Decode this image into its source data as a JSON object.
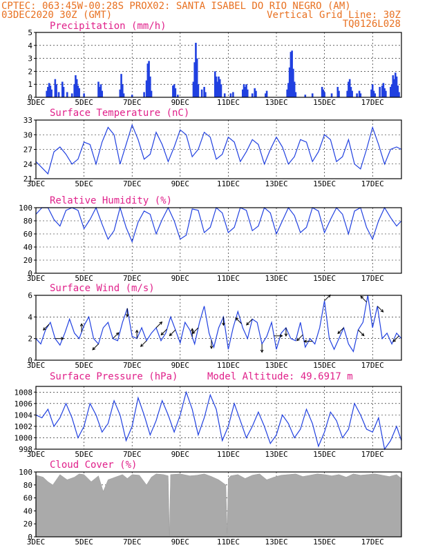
{
  "header": {
    "line1_left": "CPTEC:  063:45W-00:28S  PROX02: SANTA ISABEL DO RIO NEGRO (AM)",
    "line2_left": "03DEC2020 30Z (GMT)",
    "line2_right": "Vertical Grid Line: 30Z",
    "line3_right": "TQ0126L028"
  },
  "colors": {
    "header": "#e87020",
    "title": "#e0208a",
    "series": "#2040e0",
    "cloud": "#aaaaaa"
  },
  "x_axis": {
    "ticks": [
      {
        "day": 3,
        "label": "3DEC"
      },
      {
        "day": 5,
        "label": "5DEC"
      },
      {
        "day": 7,
        "label": "7DEC"
      },
      {
        "day": 9,
        "label": "9DEC"
      },
      {
        "day": 11,
        "label": "11DEC"
      },
      {
        "day": 13,
        "label": "13DEC"
      },
      {
        "day": 15,
        "label": "15DEC"
      },
      {
        "day": 17,
        "label": "17DEC"
      }
    ],
    "range": [
      3,
      18.2
    ]
  },
  "chart_data": [
    {
      "type": "bar",
      "title": "Precipitation (mm/h)",
      "ylim": [
        0,
        5
      ],
      "yticks": [
        0,
        1,
        2,
        3,
        4,
        5
      ],
      "points": [
        [
          3.45,
          0.5
        ],
        [
          3.5,
          0.8
        ],
        [
          3.55,
          1.1
        ],
        [
          3.6,
          0.9
        ],
        [
          3.65,
          0.6
        ],
        [
          3.8,
          1.4
        ],
        [
          3.85,
          1.0
        ],
        [
          3.95,
          0.4
        ],
        [
          4.1,
          1.2
        ],
        [
          4.15,
          0.8
        ],
        [
          4.3,
          0.4
        ],
        [
          4.5,
          0.3
        ],
        [
          4.6,
          1.0
        ],
        [
          4.65,
          1.7
        ],
        [
          4.7,
          1.4
        ],
        [
          4.75,
          0.9
        ],
        [
          4.8,
          0.7
        ],
        [
          5.0,
          0.3
        ],
        [
          5.6,
          1.2
        ],
        [
          5.65,
          0.8
        ],
        [
          5.7,
          1.0
        ],
        [
          5.75,
          0.5
        ],
        [
          6.5,
          0.6
        ],
        [
          6.55,
          1.8
        ],
        [
          6.6,
          1.0
        ],
        [
          6.65,
          0.3
        ],
        [
          7.0,
          0.2
        ],
        [
          7.5,
          0.4
        ],
        [
          7.6,
          1.3
        ],
        [
          7.65,
          2.6
        ],
        [
          7.7,
          2.8
        ],
        [
          7.75,
          1.6
        ],
        [
          7.8,
          0.5
        ],
        [
          8.7,
          0.9
        ],
        [
          8.75,
          1.0
        ],
        [
          8.8,
          0.7
        ],
        [
          8.9,
          0.2
        ],
        [
          9.55,
          1.2
        ],
        [
          9.6,
          2.7
        ],
        [
          9.65,
          4.2
        ],
        [
          9.7,
          3.0
        ],
        [
          9.75,
          1.0
        ],
        [
          9.9,
          0.6
        ],
        [
          10.0,
          0.8
        ],
        [
          10.05,
          0.4
        ],
        [
          10.45,
          2.0
        ],
        [
          10.5,
          1.6
        ],
        [
          10.55,
          1.2
        ],
        [
          10.6,
          1.6
        ],
        [
          10.65,
          1.4
        ],
        [
          10.7,
          1.0
        ],
        [
          10.85,
          0.3
        ],
        [
          11.1,
          0.3
        ],
        [
          11.2,
          0.4
        ],
        [
          11.6,
          0.6
        ],
        [
          11.65,
          1.0
        ],
        [
          11.7,
          0.8
        ],
        [
          11.75,
          1.0
        ],
        [
          11.8,
          0.6
        ],
        [
          12.0,
          0.3
        ],
        [
          12.1,
          0.7
        ],
        [
          12.15,
          0.5
        ],
        [
          12.55,
          0.3
        ],
        [
          12.6,
          0.5
        ],
        [
          13.45,
          0.6
        ],
        [
          13.5,
          1.1
        ],
        [
          13.55,
          2.3
        ],
        [
          13.6,
          3.5
        ],
        [
          13.65,
          3.6
        ],
        [
          13.7,
          2.2
        ],
        [
          13.75,
          1.2
        ],
        [
          13.8,
          0.4
        ],
        [
          14.2,
          0.2
        ],
        [
          14.5,
          0.3
        ],
        [
          14.9,
          0.8
        ],
        [
          14.95,
          0.6
        ],
        [
          15.0,
          0.4
        ],
        [
          15.3,
          0.3
        ],
        [
          15.55,
          0.8
        ],
        [
          15.6,
          0.5
        ],
        [
          15.95,
          0.5
        ],
        [
          16.0,
          1.2
        ],
        [
          16.05,
          1.4
        ],
        [
          16.1,
          0.8
        ],
        [
          16.15,
          0.5
        ],
        [
          16.35,
          0.3
        ],
        [
          16.45,
          0.5
        ],
        [
          16.5,
          0.3
        ],
        [
          16.95,
          0.6
        ],
        [
          17.0,
          1.0
        ],
        [
          17.05,
          0.5
        ],
        [
          17.1,
          0.3
        ],
        [
          17.3,
          0.8
        ],
        [
          17.4,
          0.9
        ],
        [
          17.45,
          1.1
        ],
        [
          17.5,
          0.7
        ],
        [
          17.55,
          0.5
        ],
        [
          17.75,
          0.8
        ],
        [
          17.8,
          1.0
        ],
        [
          17.85,
          1.7
        ],
        [
          17.9,
          1.4
        ],
        [
          17.95,
          1.9
        ],
        [
          18.0,
          1.6
        ],
        [
          18.05,
          0.9
        ],
        [
          18.1,
          0.4
        ]
      ]
    },
    {
      "type": "line",
      "title": "Surface Temperature (nC)",
      "ylim": [
        21,
        33
      ],
      "yticks": [
        21,
        24,
        27,
        30,
        33
      ],
      "x": [
        3.0,
        3.2,
        3.5,
        3.75,
        4.0,
        4.25,
        4.5,
        4.75,
        5.0,
        5.25,
        5.5,
        5.75,
        6.0,
        6.25,
        6.5,
        6.75,
        7.0,
        7.25,
        7.5,
        7.75,
        8.0,
        8.25,
        8.5,
        8.75,
        9.0,
        9.25,
        9.5,
        9.75,
        10.0,
        10.25,
        10.5,
        10.75,
        11.0,
        11.25,
        11.5,
        11.75,
        12.0,
        12.25,
        12.5,
        12.75,
        13.0,
        13.25,
        13.5,
        13.75,
        14.0,
        14.25,
        14.5,
        14.75,
        15.0,
        15.25,
        15.5,
        15.75,
        16.0,
        16.25,
        16.5,
        16.75,
        17.0,
        17.25,
        17.5,
        17.75,
        18.0,
        18.2
      ],
      "y": [
        24.5,
        23.5,
        22.0,
        26.5,
        27.5,
        26.0,
        24.0,
        25.0,
        28.5,
        28.0,
        24.0,
        28.5,
        31.5,
        30.0,
        24.0,
        28.0,
        32.0,
        29.0,
        25.0,
        26.0,
        30.5,
        28.0,
        24.5,
        27.5,
        31.0,
        30.0,
        25.5,
        27.0,
        30.5,
        29.5,
        25.0,
        26.0,
        29.5,
        28.5,
        24.5,
        26.5,
        29.0,
        28.0,
        24.0,
        27.0,
        29.5,
        27.5,
        24.0,
        25.5,
        29.0,
        28.5,
        24.5,
        26.5,
        30.0,
        29.0,
        24.5,
        25.5,
        29.0,
        24.0,
        23.0,
        27.0,
        31.5,
        28.0,
        24.0,
        27.0,
        27.5,
        27.0
      ]
    },
    {
      "type": "line",
      "title": "Relative Humidity (%)",
      "ylim": [
        0,
        100
      ],
      "yticks": [
        0,
        20,
        40,
        60,
        80,
        100
      ],
      "x": [
        3.0,
        3.25,
        3.5,
        3.75,
        4.0,
        4.25,
        4.5,
        4.75,
        5.0,
        5.25,
        5.5,
        5.75,
        6.0,
        6.25,
        6.5,
        6.75,
        7.0,
        7.25,
        7.5,
        7.75,
        8.0,
        8.25,
        8.5,
        8.75,
        9.0,
        9.25,
        9.5,
        9.75,
        10.0,
        10.25,
        10.5,
        10.75,
        11.0,
        11.25,
        11.5,
        11.75,
        12.0,
        12.25,
        12.5,
        12.75,
        13.0,
        13.25,
        13.5,
        13.75,
        14.0,
        14.25,
        14.5,
        14.75,
        15.0,
        15.25,
        15.5,
        15.75,
        16.0,
        16.25,
        16.5,
        16.75,
        17.0,
        17.25,
        17.5,
        17.75,
        18.0,
        18.2
      ],
      "y": [
        90,
        100,
        100,
        82,
        72,
        96,
        100,
        96,
        68,
        82,
        100,
        75,
        52,
        65,
        100,
        70,
        48,
        78,
        95,
        90,
        60,
        82,
        100,
        80,
        52,
        58,
        98,
        96,
        62,
        70,
        100,
        92,
        62,
        70,
        100,
        96,
        65,
        72,
        100,
        92,
        60,
        80,
        100,
        88,
        62,
        70,
        100,
        95,
        62,
        82,
        100,
        90,
        60,
        95,
        100,
        70,
        52,
        80,
        100,
        85,
        72,
        80
      ]
    },
    {
      "type": "line",
      "title": "Surface Wind (m/s)",
      "ylim": [
        0,
        6
      ],
      "yticks": [
        0,
        2,
        4,
        6
      ],
      "x": [
        3.0,
        3.2,
        3.4,
        3.6,
        3.8,
        4.0,
        4.2,
        4.4,
        4.6,
        4.8,
        5.0,
        5.2,
        5.4,
        5.6,
        5.8,
        6.0,
        6.2,
        6.4,
        6.6,
        6.8,
        7.0,
        7.2,
        7.4,
        7.6,
        7.8,
        8.0,
        8.2,
        8.4,
        8.6,
        8.8,
        9.0,
        9.2,
        9.4,
        9.6,
        9.8,
        10.0,
        10.2,
        10.4,
        10.6,
        10.8,
        11.0,
        11.2,
        11.4,
        11.6,
        11.8,
        12.0,
        12.2,
        12.4,
        12.6,
        12.8,
        13.0,
        13.2,
        13.4,
        13.6,
        13.8,
        14.0,
        14.2,
        14.4,
        14.6,
        14.8,
        15.0,
        15.2,
        15.4,
        15.6,
        15.8,
        16.0,
        16.2,
        16.4,
        16.6,
        16.8,
        17.0,
        17.2,
        17.4,
        17.6,
        17.8,
        18.0,
        18.2
      ],
      "y": [
        2.0,
        1.5,
        2.8,
        3.5,
        2.0,
        1.4,
        2.5,
        3.8,
        2.5,
        2.0,
        3.2,
        4.0,
        2.0,
        1.5,
        3.0,
        3.5,
        2.0,
        1.8,
        3.5,
        4.8,
        2.2,
        2.0,
        3.0,
        1.8,
        2.5,
        3.0,
        1.8,
        2.5,
        4.0,
        2.8,
        1.6,
        3.5,
        2.8,
        1.5,
        3.5,
        5.0,
        2.5,
        1.2,
        3.0,
        4.0,
        1.0,
        3.0,
        4.5,
        3.0,
        2.0,
        3.8,
        3.5,
        1.5,
        2.2,
        3.5,
        1.0,
        2.5,
        3.0,
        2.0,
        1.8,
        3.5,
        1.2,
        2.0,
        1.5,
        3.0,
        5.5,
        2.0,
        1.0,
        2.0,
        3.0,
        1.5,
        0.8,
        2.8,
        3.5,
        6.0,
        3.0,
        5.0,
        2.0,
        2.5,
        1.5,
        2.5,
        2.0
      ]
    },
    {
      "type": "line",
      "title": "Surface Pressure (hPa)",
      "ylim": [
        998,
        1009
      ],
      "yticks": [
        998,
        1000,
        1002,
        1004,
        1006,
        1008
      ],
      "annotation": "Model Altitude: 49.6917 m",
      "x": [
        3.0,
        3.25,
        3.5,
        3.75,
        4.0,
        4.25,
        4.5,
        4.75,
        5.0,
        5.25,
        5.5,
        5.75,
        6.0,
        6.25,
        6.5,
        6.75,
        7.0,
        7.25,
        7.5,
        7.75,
        8.0,
        8.25,
        8.5,
        8.75,
        9.0,
        9.25,
        9.5,
        9.75,
        10.0,
        10.25,
        10.5,
        10.75,
        11.0,
        11.25,
        11.5,
        11.75,
        12.0,
        12.25,
        12.5,
        12.75,
        13.0,
        13.25,
        13.5,
        13.75,
        14.0,
        14.25,
        14.5,
        14.75,
        15.0,
        15.25,
        15.5,
        15.75,
        16.0,
        16.25,
        16.5,
        16.75,
        17.0,
        17.25,
        17.5,
        17.75,
        18.0,
        18.2
      ],
      "y": [
        1004,
        1003.5,
        1005,
        1002,
        1003.5,
        1006,
        1003.5,
        1000,
        1002,
        1006,
        1004,
        1001,
        1002.5,
        1006.5,
        1004,
        999.5,
        1002,
        1007,
        1004,
        1000.5,
        1003,
        1006.5,
        1004,
        1001,
        1004,
        1008,
        1005,
        1000.5,
        1003.5,
        1007.5,
        1005,
        999.5,
        1002,
        1006,
        1003,
        1000,
        1002,
        1004.5,
        1002,
        999,
        1000.5,
        1004,
        1002.5,
        1000,
        1001.5,
        1005,
        1002.5,
        998.5,
        1001,
        1004.5,
        1003,
        1000,
        1001.5,
        1006,
        1004,
        1001.5,
        1001,
        1003.5,
        998,
        999.5,
        1002,
        999.5
      ]
    },
    {
      "type": "area",
      "title": "Cloud Cover (%)",
      "ylim": [
        0,
        100
      ],
      "yticks": [
        0,
        20,
        40,
        60,
        80,
        100
      ],
      "x": [
        3.0,
        3.3,
        3.5,
        3.7,
        4.0,
        4.3,
        4.6,
        4.8,
        5.0,
        5.3,
        5.6,
        5.8,
        6.0,
        6.3,
        6.6,
        6.8,
        7.0,
        7.3,
        7.6,
        7.8,
        8.0,
        8.3,
        8.5,
        8.55,
        8.6,
        9.0,
        9.4,
        9.7,
        10.0,
        10.3,
        10.6,
        10.9,
        10.95,
        11.0,
        11.1,
        11.4,
        11.7,
        12.0,
        12.3,
        12.6,
        12.9,
        13.2,
        13.5,
        13.8,
        14.1,
        14.4,
        14.7,
        15.0,
        15.3,
        15.6,
        15.9,
        16.2,
        16.5,
        16.8,
        17.1,
        17.4,
        17.7,
        18.0,
        18.2
      ],
      "y": [
        95,
        92,
        85,
        80,
        96,
        88,
        92,
        97,
        96,
        85,
        94,
        70,
        88,
        92,
        96,
        90,
        96,
        95,
        80,
        92,
        97,
        96,
        94,
        2,
        96,
        97,
        94,
        95,
        97,
        93,
        88,
        80,
        5,
        90,
        94,
        96,
        90,
        95,
        97,
        88,
        92,
        95,
        96,
        97,
        93,
        95,
        97,
        96,
        94,
        96,
        92,
        97,
        95,
        96,
        97,
        95,
        93,
        96,
        90
      ]
    }
  ],
  "wind_arrows": [
    {
      "x": 3.55,
      "dir": "SW"
    },
    {
      "x": 3.8,
      "dir": "E"
    },
    {
      "x": 4.9,
      "dir": "N"
    },
    {
      "x": 5.6,
      "dir": "SW"
    },
    {
      "x": 6.2,
      "dir": "NE"
    },
    {
      "x": 6.8,
      "dir": "S"
    },
    {
      "x": 7.2,
      "dir": "N"
    },
    {
      "x": 7.6,
      "dir": "SW"
    },
    {
      "x": 8.0,
      "dir": "NE"
    },
    {
      "x": 8.45,
      "dir": "SW"
    },
    {
      "x": 8.8,
      "dir": "SW"
    },
    {
      "x": 9.5,
      "dir": "N"
    },
    {
      "x": 9.75,
      "dir": "SW"
    },
    {
      "x": 10.3,
      "dir": "S"
    },
    {
      "x": 10.8,
      "dir": "S"
    },
    {
      "x": 11.55,
      "dir": "NW"
    },
    {
      "x": 12.0,
      "dir": "SW"
    },
    {
      "x": 12.4,
      "dir": "S"
    },
    {
      "x": 12.9,
      "dir": "E"
    },
    {
      "x": 13.4,
      "dir": "S"
    },
    {
      "x": 14.1,
      "dir": "SW"
    },
    {
      "x": 14.5,
      "dir": "W"
    },
    {
      "x": 15.0,
      "dir": "NE"
    },
    {
      "x": 15.8,
      "dir": "SW"
    },
    {
      "x": 16.4,
      "dir": "SE"
    },
    {
      "x": 16.75,
      "dir": "NW"
    },
    {
      "x": 17.2,
      "dir": "SE"
    },
    {
      "x": 18.1,
      "dir": "SW"
    }
  ]
}
